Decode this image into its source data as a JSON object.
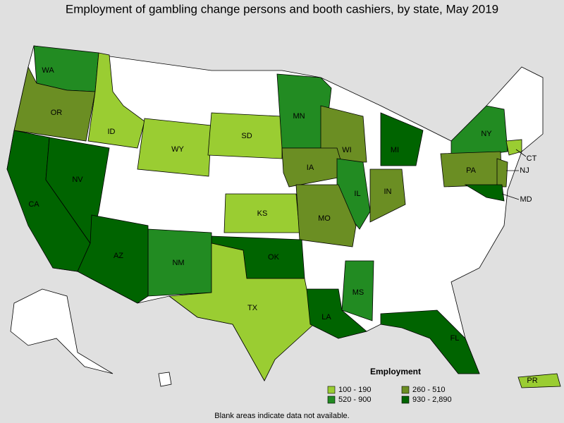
{
  "title": "Employment of gambling change persons and booth cashiers, by state, May 2019",
  "note": "Blank areas indicate data not available.",
  "legend": {
    "title": "Employment",
    "classes": [
      {
        "label": "100 - 190",
        "color": "#9acd32"
      },
      {
        "label": "260 - 510",
        "color": "#6b8e23"
      },
      {
        "label": "520 - 900",
        "color": "#228b22"
      },
      {
        "label": "930 - 2,890",
        "color": "#006400"
      }
    ]
  },
  "states": [
    {
      "abbr": "WA",
      "class": 2
    },
    {
      "abbr": "OR",
      "class": 1
    },
    {
      "abbr": "CA",
      "class": 3
    },
    {
      "abbr": "NV",
      "class": 3
    },
    {
      "abbr": "ID",
      "class": 0
    },
    {
      "abbr": "WY",
      "class": 0
    },
    {
      "abbr": "SD",
      "class": 0
    },
    {
      "abbr": "MN",
      "class": 2
    },
    {
      "abbr": "WI",
      "class": 1
    },
    {
      "abbr": "MI",
      "class": 3
    },
    {
      "abbr": "NY",
      "class": 2
    },
    {
      "abbr": "PA",
      "class": 1
    },
    {
      "abbr": "NJ",
      "class": 1
    },
    {
      "abbr": "CT",
      "class": 0
    },
    {
      "abbr": "MD",
      "class": 3
    },
    {
      "abbr": "IA",
      "class": 1
    },
    {
      "abbr": "IL",
      "class": 2
    },
    {
      "abbr": "IN",
      "class": 1
    },
    {
      "abbr": "KS",
      "class": 0
    },
    {
      "abbr": "MO",
      "class": 1
    },
    {
      "abbr": "OK",
      "class": 3
    },
    {
      "abbr": "NM",
      "class": 2
    },
    {
      "abbr": "AZ",
      "class": 3
    },
    {
      "abbr": "TX",
      "class": 0
    },
    {
      "abbr": "LA",
      "class": 3
    },
    {
      "abbr": "MS",
      "class": 2
    },
    {
      "abbr": "FL",
      "class": 3
    },
    {
      "abbr": "PR",
      "class": 0
    }
  ]
}
